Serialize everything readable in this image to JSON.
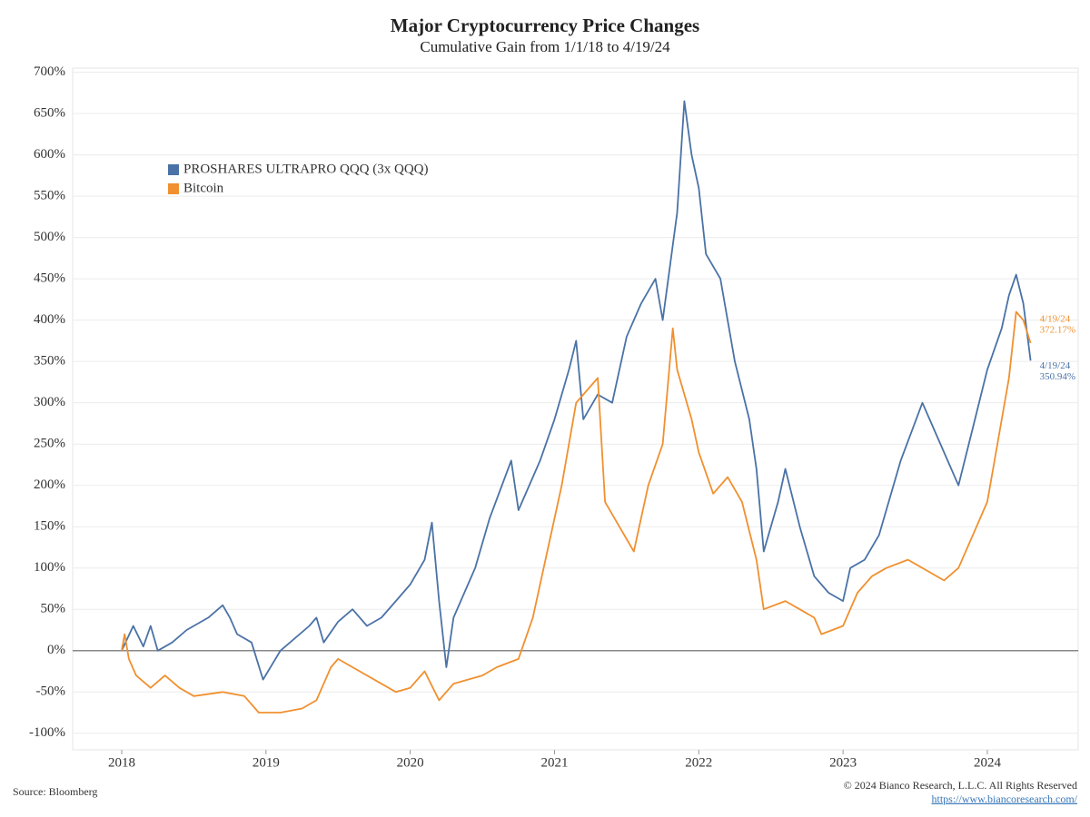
{
  "chart_data": {
    "type": "line",
    "title": "Major Cryptocurrency Price Changes",
    "subtitle": "Cumulative Gain from 1/1/18 to 4/19/24",
    "source": "Source: Bloomberg",
    "copyright": "© 2024 Bianco Research, L.L.C. All Rights Reserved",
    "url": "https://www.biancoresearch.com/",
    "xlim": [
      2017.66,
      2024.63
    ],
    "xticks": [
      2018,
      2019,
      2020,
      2021,
      2022,
      2023,
      2024
    ],
    "ylim": [
      -120,
      705
    ],
    "yticks": [
      {
        "value": -100,
        "label": "-100%"
      },
      {
        "value": -50,
        "label": "-50%"
      },
      {
        "value": 0,
        "label": "0%"
      },
      {
        "value": 50,
        "label": "50%"
      },
      {
        "value": 100,
        "label": "100%"
      },
      {
        "value": 150,
        "label": "150%"
      },
      {
        "value": 200,
        "label": "200%"
      },
      {
        "value": 250,
        "label": "250%"
      },
      {
        "value": 300,
        "label": "300%"
      },
      {
        "value": 350,
        "label": "350%"
      },
      {
        "value": 400,
        "label": "400%"
      },
      {
        "value": 450,
        "label": "450%"
      },
      {
        "value": 500,
        "label": "500%"
      },
      {
        "value": 550,
        "label": "550%"
      },
      {
        "value": 600,
        "label": "600%"
      },
      {
        "value": 650,
        "label": "650%"
      },
      {
        "value": 700,
        "label": "700%"
      }
    ],
    "grid": true,
    "legend": "upper left",
    "series": [
      {
        "name": "PROSHARES ULTRAPRO QQQ (3x QQQ)",
        "color": "#4a72a6",
        "end_labels": [
          "4/19/24",
          "350.94%"
        ],
        "x": [
          2018.0,
          2018.08,
          2018.15,
          2018.2,
          2018.25,
          2018.35,
          2018.45,
          2018.6,
          2018.7,
          2018.75,
          2018.8,
          2018.9,
          2018.98,
          2019.1,
          2019.3,
          2019.35,
          2019.4,
          2019.5,
          2019.6,
          2019.7,
          2019.8,
          2019.9,
          2020.0,
          2020.1,
          2020.15,
          2020.2,
          2020.25,
          2020.3,
          2020.45,
          2020.55,
          2020.7,
          2020.75,
          2020.9,
          2021.0,
          2021.1,
          2021.15,
          2021.2,
          2021.3,
          2021.4,
          2021.5,
          2021.6,
          2021.7,
          2021.75,
          2021.85,
          2021.9,
          2021.95,
          2022.0,
          2022.05,
          2022.15,
          2022.25,
          2022.35,
          2022.4,
          2022.45,
          2022.55,
          2022.6,
          2022.7,
          2022.8,
          2022.9,
          2023.0,
          2023.05,
          2023.15,
          2023.25,
          2023.4,
          2023.55,
          2023.65,
          2023.8,
          2023.9,
          2024.0,
          2024.1,
          2024.15,
          2024.2,
          2024.25,
          2024.3
        ],
        "values": [
          0,
          30,
          5,
          30,
          0,
          10,
          25,
          40,
          55,
          40,
          20,
          10,
          -35,
          0,
          30,
          40,
          10,
          35,
          50,
          30,
          40,
          60,
          80,
          110,
          155,
          60,
          -20,
          40,
          100,
          160,
          230,
          170,
          230,
          280,
          340,
          375,
          280,
          310,
          300,
          380,
          420,
          450,
          400,
          530,
          665,
          600,
          560,
          480,
          450,
          350,
          280,
          220,
          120,
          180,
          220,
          150,
          90,
          70,
          60,
          100,
          110,
          140,
          230,
          300,
          260,
          200,
          270,
          340,
          390,
          430,
          455,
          420,
          350.94
        ]
      },
      {
        "name": "Bitcoin",
        "color": "#f0902f",
        "end_labels": [
          "4/19/24",
          "372.17%"
        ],
        "x": [
          2018.0,
          2018.02,
          2018.05,
          2018.1,
          2018.2,
          2018.3,
          2018.4,
          2018.5,
          2018.7,
          2018.85,
          2018.95,
          2019.1,
          2019.25,
          2019.35,
          2019.45,
          2019.5,
          2019.6,
          2019.8,
          2019.9,
          2020.0,
          2020.1,
          2020.2,
          2020.3,
          2020.5,
          2020.6,
          2020.75,
          2020.85,
          2020.95,
          2021.05,
          2021.15,
          2021.3,
          2021.35,
          2021.45,
          2021.55,
          2021.65,
          2021.75,
          2021.82,
          2021.85,
          2021.95,
          2022.0,
          2022.1,
          2022.2,
          2022.3,
          2022.4,
          2022.45,
          2022.6,
          2022.7,
          2022.8,
          2022.85,
          2023.0,
          2023.1,
          2023.2,
          2023.3,
          2023.45,
          2023.55,
          2023.7,
          2023.8,
          2023.9,
          2024.0,
          2024.05,
          2024.15,
          2024.2,
          2024.25,
          2024.3
        ],
        "values": [
          0,
          20,
          -10,
          -30,
          -45,
          -30,
          -45,
          -55,
          -50,
          -55,
          -75,
          -75,
          -70,
          -60,
          -20,
          -10,
          -20,
          -40,
          -50,
          -45,
          -25,
          -60,
          -40,
          -30,
          -20,
          -10,
          40,
          120,
          200,
          300,
          330,
          180,
          150,
          120,
          200,
          250,
          390,
          340,
          280,
          240,
          190,
          210,
          180,
          110,
          50,
          60,
          50,
          40,
          20,
          30,
          70,
          90,
          100,
          110,
          100,
          85,
          100,
          140,
          180,
          230,
          330,
          410,
          400,
          372.17
        ]
      }
    ]
  }
}
